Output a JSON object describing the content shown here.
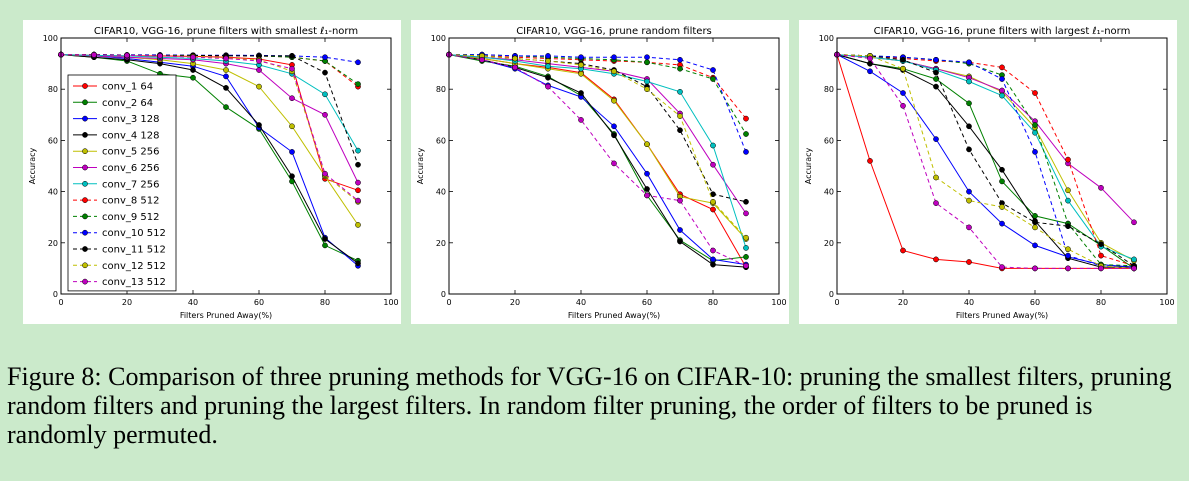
{
  "caption": "Figure 8: Comparison of three pruning methods for VGG-16 on CIFAR-10: pruning the smallest filters, pruning random filters and pruning the largest filters. In random filter pruning, the order of filters to be pruned is randomly permuted.",
  "series_styles": [
    {
      "name": "conv_1 64",
      "color": "#ff0000",
      "dash": false
    },
    {
      "name": "conv_2 64",
      "color": "#008000",
      "dash": false
    },
    {
      "name": "conv_3 128",
      "color": "#0000ff",
      "dash": false
    },
    {
      "name": "conv_4 128",
      "color": "#000000",
      "dash": false
    },
    {
      "name": "conv_5 256",
      "color": "#bfbf00",
      "dash": false
    },
    {
      "name": "conv_6 256",
      "color": "#bf00bf",
      "dash": false
    },
    {
      "name": "conv_7 256",
      "color": "#00bfbf",
      "dash": false
    },
    {
      "name": "conv_8 512",
      "color": "#ff0000",
      "dash": true
    },
    {
      "name": "conv_9 512",
      "color": "#008000",
      "dash": true
    },
    {
      "name": "conv_10 512",
      "color": "#0000ff",
      "dash": true
    },
    {
      "name": "conv_11 512",
      "color": "#000000",
      "dash": true
    },
    {
      "name": "conv_12 512",
      "color": "#bfbf00",
      "dash": true
    },
    {
      "name": "conv_13 512",
      "color": "#bf00bf",
      "dash": true
    }
  ],
  "chart_data": [
    {
      "type": "line",
      "title": "CIFAR10, VGG-16, prune filters with smallest ℓ₁-norm",
      "xlabel": "Filters Pruned Away(%)",
      "ylabel": "Accuracy",
      "xlim": [
        0,
        100
      ],
      "ylim": [
        0,
        100
      ],
      "xticks": [
        "0",
        "20",
        "40",
        "60",
        "80",
        "100"
      ],
      "yticks": [
        "0",
        "20",
        "40",
        "60",
        "80",
        "100"
      ],
      "x": [
        0,
        10,
        20,
        30,
        40,
        50,
        60,
        70,
        80,
        90
      ],
      "legend_position": "left-middle",
      "series": [
        {
          "name": "conv_1 64",
          "values": [
            93.5,
            93.2,
            93.0,
            93.0,
            92.8,
            92.5,
            91.8,
            89.5,
            45.0,
            40.5
          ]
        },
        {
          "name": "conv_2 64",
          "values": [
            93.5,
            92.5,
            91.0,
            86.0,
            84.5,
            73.0,
            64.5,
            44.0,
            19.0,
            13.0
          ]
        },
        {
          "name": "conv_3 128",
          "values": [
            93.5,
            93.0,
            92.0,
            90.5,
            89.0,
            85.0,
            65.0,
            55.5,
            22.0,
            11.0
          ]
        },
        {
          "name": "conv_4 128",
          "values": [
            93.5,
            92.5,
            91.5,
            90.0,
            87.5,
            80.5,
            66.0,
            46.0,
            21.5,
            12.0
          ]
        },
        {
          "name": "conv_5 256",
          "values": [
            93.5,
            93.0,
            92.5,
            91.5,
            90.0,
            87.5,
            81.0,
            65.5,
            46.0,
            27.0
          ]
        },
        {
          "name": "conv_6 256",
          "values": [
            93.5,
            93.0,
            92.5,
            92.0,
            91.5,
            90.0,
            87.5,
            76.5,
            70.0,
            43.5
          ]
        },
        {
          "name": "conv_7 256",
          "values": [
            93.5,
            93.2,
            93.0,
            92.5,
            92.0,
            91.0,
            89.5,
            86.0,
            78.0,
            56.0
          ]
        },
        {
          "name": "conv_8 512",
          "values": [
            93.5,
            93.5,
            93.3,
            93.2,
            93.2,
            93.1,
            93.0,
            92.5,
            91.0,
            81.0
          ]
        },
        {
          "name": "conv_9 512",
          "values": [
            93.5,
            93.5,
            93.3,
            93.2,
            93.2,
            93.1,
            93.0,
            92.5,
            91.0,
            82.0
          ]
        },
        {
          "name": "conv_10 512",
          "values": [
            93.5,
            93.5,
            93.4,
            93.4,
            93.3,
            93.3,
            93.2,
            93.0,
            92.5,
            90.5
          ]
        },
        {
          "name": "conv_11 512",
          "values": [
            93.5,
            93.5,
            93.3,
            93.2,
            93.2,
            93.1,
            93.0,
            93.0,
            86.5,
            50.5
          ]
        },
        {
          "name": "conv_12 512",
          "values": [
            93.5,
            93.4,
            93.2,
            93.0,
            92.8,
            92.2,
            91.5,
            87.0,
            46.5,
            36.0
          ]
        },
        {
          "name": "conv_13 512",
          "values": [
            93.5,
            93.4,
            93.2,
            93.0,
            92.5,
            92.0,
            91.0,
            88.0,
            47.0,
            36.5
          ]
        }
      ]
    },
    {
      "type": "line",
      "title": "CIFAR10, VGG-16, prune random filters",
      "xlabel": "Filters Pruned Away(%)",
      "ylabel": "Accuracy",
      "xlim": [
        0,
        100
      ],
      "ylim": [
        0,
        100
      ],
      "xticks": [
        "0",
        "20",
        "40",
        "60",
        "80",
        "100"
      ],
      "yticks": [
        "0",
        "20",
        "40",
        "60",
        "80",
        "100"
      ],
      "x": [
        0,
        10,
        20,
        30,
        40,
        50,
        60,
        70,
        80,
        90
      ],
      "series": [
        {
          "name": "conv_1 64",
          "values": [
            93.5,
            92.0,
            90.0,
            88.5,
            86.5,
            76.0,
            58.5,
            39.0,
            33.0,
            10.5
          ]
        },
        {
          "name": "conv_2 64",
          "values": [
            93.5,
            91.0,
            89.0,
            85.0,
            77.5,
            62.5,
            38.5,
            21.0,
            13.0,
            14.5
          ]
        },
        {
          "name": "conv_3 128",
          "values": [
            93.5,
            91.5,
            88.0,
            81.5,
            77.0,
            65.5,
            47.0,
            25.0,
            13.5,
            11.5
          ]
        },
        {
          "name": "conv_4 128",
          "values": [
            93.5,
            91.5,
            88.5,
            84.5,
            78.5,
            62.0,
            41.0,
            20.5,
            11.5,
            10.5
          ]
        },
        {
          "name": "conv_5 256",
          "values": [
            93.5,
            92.0,
            90.0,
            88.0,
            86.0,
            75.5,
            58.5,
            38.0,
            35.5,
            21.5
          ]
        },
        {
          "name": "conv_6 256",
          "values": [
            93.5,
            92.5,
            91.5,
            90.0,
            88.5,
            87.0,
            84.0,
            70.5,
            50.5,
            31.5
          ]
        },
        {
          "name": "conv_7 256",
          "values": [
            93.5,
            92.5,
            91.0,
            89.0,
            88.0,
            86.0,
            83.0,
            79.0,
            58.0,
            18.0
          ]
        },
        {
          "name": "conv_8 512",
          "values": [
            93.5,
            93.0,
            92.5,
            92.0,
            91.5,
            91.0,
            90.5,
            89.5,
            84.5,
            68.5
          ]
        },
        {
          "name": "conv_9 512",
          "values": [
            93.5,
            93.5,
            93.0,
            92.5,
            92.0,
            91.5,
            90.5,
            88.0,
            84.0,
            62.5
          ]
        },
        {
          "name": "conv_10 512",
          "values": [
            93.5,
            93.5,
            93.0,
            93.0,
            92.5,
            92.5,
            92.5,
            91.5,
            87.5,
            55.5
          ]
        },
        {
          "name": "conv_11 512",
          "values": [
            93.5,
            93.0,
            92.0,
            91.0,
            90.0,
            87.5,
            81.0,
            64.0,
            39.0,
            36.0
          ]
        },
        {
          "name": "conv_12 512",
          "values": [
            93.5,
            93.0,
            92.0,
            91.0,
            89.5,
            87.0,
            80.0,
            69.5,
            36.0,
            22.0
          ]
        },
        {
          "name": "conv_13 512",
          "values": [
            93.5,
            91.5,
            88.5,
            81.0,
            68.0,
            51.0,
            38.5,
            36.5,
            17.0,
            11.0
          ]
        }
      ]
    },
    {
      "type": "line",
      "title": "CIFAR10, VGG-16, prune filters with largest ℓ₁-norm",
      "xlabel": "Filters Pruned Away(%)",
      "ylabel": "Accuracy",
      "xlim": [
        0,
        100
      ],
      "ylim": [
        0,
        100
      ],
      "xticks": [
        "0",
        "20",
        "40",
        "60",
        "80",
        "100"
      ],
      "yticks": [
        "0",
        "20",
        "40",
        "60",
        "80",
        "100"
      ],
      "x": [
        0,
        10,
        20,
        30,
        40,
        50,
        60,
        70,
        80,
        90
      ],
      "series": [
        {
          "name": "conv_1 64",
          "values": [
            93.5,
            52.0,
            17.0,
            13.5,
            12.5,
            10.0,
            10.0,
            10.0,
            10.0,
            10.0
          ]
        },
        {
          "name": "conv_2 64",
          "values": [
            93.5,
            90.0,
            88.0,
            84.0,
            74.5,
            44.0,
            30.5,
            27.5,
            19.0,
            10.0
          ]
        },
        {
          "name": "conv_3 128",
          "values": [
            93.5,
            87.0,
            78.5,
            60.5,
            40.0,
            27.5,
            19.0,
            14.5,
            11.5,
            10.5
          ]
        },
        {
          "name": "conv_4 128",
          "values": [
            93.5,
            90.0,
            87.5,
            81.0,
            65.5,
            48.5,
            28.5,
            14.0,
            10.5,
            10.5
          ]
        },
        {
          "name": "conv_5 256",
          "values": [
            93.5,
            92.5,
            91.0,
            88.0,
            85.0,
            79.0,
            65.0,
            40.5,
            20.0,
            13.0
          ]
        },
        {
          "name": "conv_6 256",
          "values": [
            93.5,
            92.5,
            91.0,
            88.0,
            84.5,
            79.5,
            67.5,
            51.0,
            41.5,
            28.0
          ]
        },
        {
          "name": "conv_7 256",
          "values": [
            93.5,
            92.5,
            91.0,
            87.5,
            83.0,
            77.5,
            63.0,
            36.5,
            18.5,
            13.5
          ]
        },
        {
          "name": "conv_8 512",
          "values": [
            93.5,
            93.0,
            92.0,
            91.0,
            90.5,
            88.5,
            78.5,
            52.5,
            15.0,
            11.0
          ]
        },
        {
          "name": "conv_9 512",
          "values": [
            93.5,
            93.0,
            92.5,
            91.5,
            90.0,
            85.5,
            66.0,
            27.5,
            11.5,
            11.0
          ]
        },
        {
          "name": "conv_10 512",
          "values": [
            93.5,
            93.0,
            92.5,
            91.5,
            90.5,
            84.0,
            55.5,
            15.0,
            11.0,
            10.5
          ]
        },
        {
          "name": "conv_11 512",
          "values": [
            93.5,
            93.0,
            91.5,
            86.5,
            56.5,
            35.5,
            28.0,
            26.5,
            19.5,
            11.0
          ]
        },
        {
          "name": "conv_12 512",
          "values": [
            93.5,
            93.0,
            88.0,
            45.5,
            36.5,
            34.0,
            26.0,
            17.5,
            11.0,
            10.0
          ]
        },
        {
          "name": "conv_13 512",
          "values": [
            93.5,
            92.0,
            73.5,
            35.5,
            26.0,
            10.5,
            10.0,
            10.0,
            10.0,
            10.0
          ]
        }
      ]
    }
  ]
}
